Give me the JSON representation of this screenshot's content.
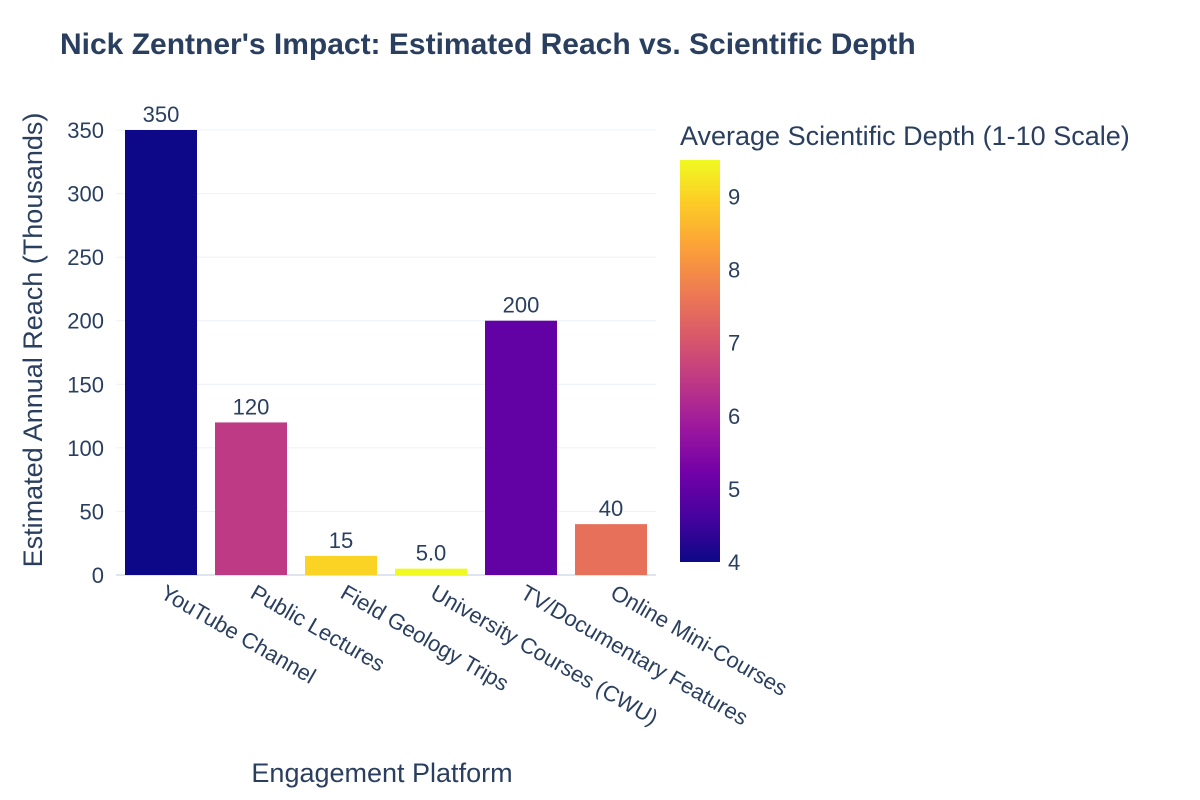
{
  "chart_data": {
    "type": "bar",
    "title": "Nick Zentner's Impact: Estimated Reach vs. Scientific Depth",
    "xlabel": "Engagement Platform",
    "ylabel": "Estimated Annual Reach (Thousands)",
    "ylim": [
      0,
      350
    ],
    "yticks": [
      0,
      50,
      100,
      150,
      200,
      250,
      300,
      350
    ],
    "grid": true,
    "categories": [
      "YouTube Channel",
      "Public Lectures",
      "Field Geology Trips",
      "University Courses (CWU)",
      "TV/Documentary Features",
      "Online Mini-Courses"
    ],
    "values": [
      350,
      120,
      15,
      5,
      200,
      40
    ],
    "value_labels": [
      "350",
      "120",
      "15",
      "5.0",
      "200",
      "40"
    ],
    "color_values": [
      4,
      6.5,
      9,
      9.5,
      5,
      7.5
    ],
    "colorbar": {
      "title": "Average Scientific Depth (1-10 Scale)",
      "range": [
        4,
        9.5
      ],
      "ticks": [
        4,
        5,
        6,
        7,
        8,
        9
      ],
      "colorscale": "Plasma",
      "colors": [
        "#0d0887",
        "#46039f",
        "#7201a8",
        "#9c179e",
        "#bd3786",
        "#d8576b",
        "#ed7953",
        "#fb9f3a",
        "#fdca26",
        "#f0f921"
      ]
    }
  }
}
